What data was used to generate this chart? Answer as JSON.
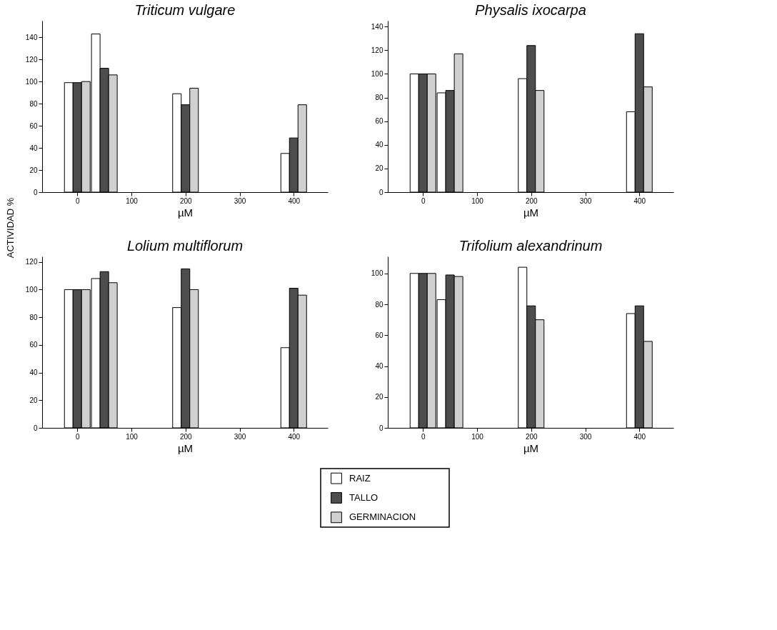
{
  "chart_data": [
    {
      "type": "bar",
      "title": "Triticum vulgare",
      "xlabel": "µM",
      "ylabel": "ACTIVIDAD %",
      "x": [
        0,
        50,
        200,
        400
      ],
      "xlim": [
        -65,
        463
      ],
      "xticks": [
        0,
        100,
        200,
        300,
        400
      ],
      "ylim": [
        0,
        155
      ],
      "yticks": [
        0,
        20,
        40,
        60,
        80,
        100,
        120,
        140
      ],
      "grid": false,
      "legend": "bottom",
      "series": [
        {
          "name": "RAIZ",
          "color": "#ffffff",
          "values": [
            99,
            143,
            89,
            35
          ]
        },
        {
          "name": "TALLO",
          "color": "#4d4d4d",
          "values": [
            99,
            112,
            79,
            49
          ]
        },
        {
          "name": "GERMINACION",
          "color": "#d0d0d0",
          "values": [
            100,
            106,
            94,
            79
          ]
        }
      ]
    },
    {
      "type": "bar",
      "title": "Physalis ixocarpa",
      "xlabel": "µM",
      "x": [
        0,
        50,
        200,
        400
      ],
      "xlim": [
        -65,
        463
      ],
      "xticks": [
        0,
        100,
        200,
        300,
        400
      ],
      "ylim": [
        0,
        145
      ],
      "yticks": [
        0,
        20,
        40,
        60,
        80,
        100,
        120,
        140
      ],
      "grid": false,
      "series": [
        {
          "color": "#ffffff",
          "values": [
            100,
            84,
            96,
            68
          ]
        },
        {
          "color": "#4d4d4d",
          "values": [
            100,
            86,
            124,
            134
          ]
        },
        {
          "color": "#d0d0d0",
          "values": [
            100,
            117,
            86,
            89
          ]
        }
      ]
    },
    {
      "type": "bar",
      "title": "Lolium multiflorum",
      "xlabel": "µM",
      "x": [
        0,
        50,
        200,
        400
      ],
      "xlim": [
        -65,
        463
      ],
      "xticks": [
        0,
        100,
        200,
        300,
        400
      ],
      "ylim": [
        0,
        124
      ],
      "yticks": [
        0,
        20,
        40,
        60,
        80,
        100,
        120
      ],
      "grid": false,
      "series": [
        {
          "color": "#ffffff",
          "values": [
            100,
            108,
            87,
            58
          ]
        },
        {
          "color": "#4d4d4d",
          "values": [
            100,
            113,
            115,
            101
          ]
        },
        {
          "color": "#d0d0d0",
          "values": [
            100,
            105,
            100,
            96
          ]
        }
      ]
    },
    {
      "type": "bar",
      "title": "Trifolium alexandrinum",
      "xlabel": "µM",
      "x": [
        0,
        50,
        200,
        400
      ],
      "xlim": [
        -65,
        463
      ],
      "xticks": [
        0,
        100,
        200,
        300,
        400
      ],
      "ylim": [
        0,
        111
      ],
      "yticks": [
        0,
        20,
        40,
        60,
        80,
        100
      ],
      "grid": false,
      "series": [
        {
          "color": "#ffffff",
          "values": [
            100,
            83,
            104,
            74
          ]
        },
        {
          "color": "#4d4d4d",
          "values": [
            100,
            99,
            79,
            79
          ]
        },
        {
          "color": "#d0d0d0",
          "values": [
            100,
            98,
            70,
            56
          ]
        }
      ]
    }
  ]
}
